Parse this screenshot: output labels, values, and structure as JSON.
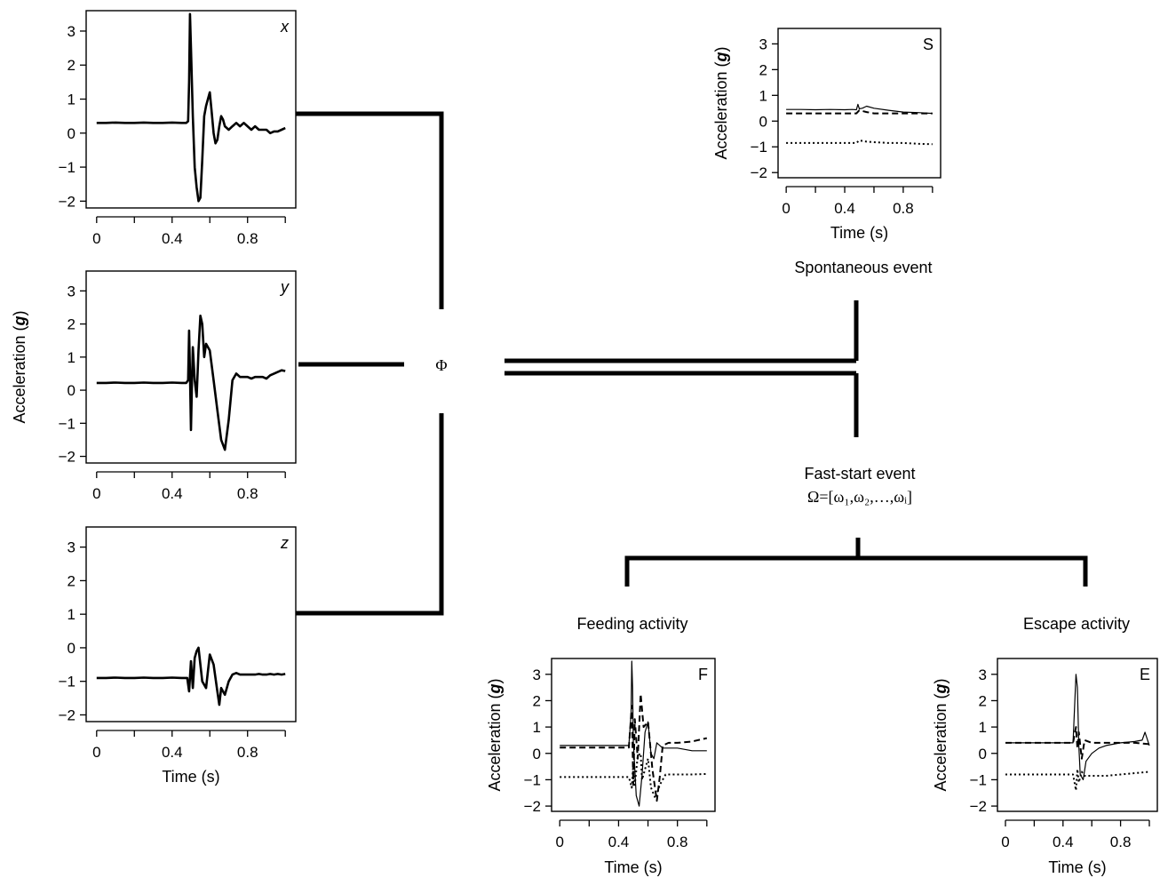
{
  "chart_data": [
    {
      "id": "x",
      "tag": "x",
      "tag_italic": true,
      "type": "line",
      "xlim": [
        0,
        1
      ],
      "ylim": [
        -2.2,
        3.6
      ],
      "xticks": [
        0,
        0.4,
        0.8
      ],
      "xtick_labels": [
        "0",
        "0.4",
        "0.8"
      ],
      "yticks": [
        -2,
        -1,
        0,
        1,
        2,
        3
      ],
      "ytick_labels": [
        "−2",
        "−1",
        "0",
        "1",
        "2",
        "3"
      ],
      "xlabel": "",
      "ylabel": "",
      "series": [
        {
          "style": "solid-thick",
          "x": [
            0,
            0.05,
            0.1,
            0.15,
            0.2,
            0.25,
            0.3,
            0.35,
            0.4,
            0.45,
            0.475,
            0.485,
            0.49,
            0.495,
            0.5,
            0.51,
            0.52,
            0.53,
            0.54,
            0.55,
            0.56,
            0.57,
            0.58,
            0.59,
            0.6,
            0.61,
            0.62,
            0.63,
            0.64,
            0.65,
            0.66,
            0.67,
            0.68,
            0.7,
            0.72,
            0.74,
            0.76,
            0.78,
            0.8,
            0.82,
            0.84,
            0.86,
            0.88,
            0.9,
            0.92,
            0.94,
            0.96,
            0.98,
            1.0
          ],
          "y": [
            0.3,
            0.3,
            0.31,
            0.3,
            0.3,
            0.31,
            0.3,
            0.3,
            0.31,
            0.3,
            0.3,
            0.35,
            1.5,
            3.5,
            2.5,
            0.5,
            -1.0,
            -1.6,
            -2.0,
            -1.9,
            -0.8,
            0.5,
            0.8,
            1.0,
            1.2,
            0.6,
            0.0,
            -0.3,
            -0.2,
            0.2,
            0.5,
            0.4,
            0.2,
            0.1,
            0.2,
            0.3,
            0.2,
            0.3,
            0.2,
            0.1,
            0.2,
            0.1,
            0.1,
            0.1,
            0.0,
            0.05,
            0.05,
            0.1,
            0.15
          ]
        }
      ]
    },
    {
      "id": "y",
      "tag": "y",
      "tag_italic": true,
      "type": "line",
      "xlim": [
        0,
        1
      ],
      "ylim": [
        -2.2,
        3.6
      ],
      "xticks": [
        0,
        0.4,
        0.8
      ],
      "xtick_labels": [
        "0",
        "0.4",
        "0.8"
      ],
      "yticks": [
        -2,
        -1,
        0,
        1,
        2,
        3
      ],
      "ytick_labels": [
        "−2",
        "−1",
        "0",
        "1",
        "2",
        "3"
      ],
      "xlabel": "",
      "ylabel": "Acceleration (g)",
      "series": [
        {
          "style": "solid-thick",
          "x": [
            0,
            0.05,
            0.1,
            0.15,
            0.2,
            0.25,
            0.3,
            0.35,
            0.4,
            0.45,
            0.475,
            0.485,
            0.49,
            0.495,
            0.5,
            0.505,
            0.51,
            0.52,
            0.53,
            0.54,
            0.55,
            0.56,
            0.57,
            0.58,
            0.6,
            0.62,
            0.64,
            0.66,
            0.68,
            0.7,
            0.72,
            0.74,
            0.76,
            0.78,
            0.8,
            0.82,
            0.84,
            0.86,
            0.88,
            0.9,
            0.92,
            0.94,
            0.96,
            0.98,
            1.0
          ],
          "y": [
            0.22,
            0.22,
            0.23,
            0.22,
            0.22,
            0.23,
            0.22,
            0.22,
            0.23,
            0.22,
            0.22,
            0.3,
            1.8,
            0.5,
            -1.2,
            0.2,
            1.3,
            0.3,
            -0.2,
            1.2,
            2.25,
            2.0,
            1.0,
            1.4,
            1.2,
            0.3,
            -0.6,
            -1.5,
            -1.8,
            -0.9,
            0.3,
            0.5,
            0.4,
            0.4,
            0.4,
            0.35,
            0.4,
            0.4,
            0.4,
            0.35,
            0.45,
            0.5,
            0.55,
            0.6,
            0.58
          ]
        }
      ]
    },
    {
      "id": "z",
      "tag": "z",
      "tag_italic": true,
      "type": "line",
      "xlim": [
        0,
        1
      ],
      "ylim": [
        -2.2,
        3.6
      ],
      "xticks": [
        0,
        0.4,
        0.8
      ],
      "xtick_labels": [
        "0",
        "0.4",
        "0.8"
      ],
      "yticks": [
        -2,
        -1,
        0,
        1,
        2,
        3
      ],
      "ytick_labels": [
        "−2",
        "−1",
        "0",
        "1",
        "2",
        "3"
      ],
      "xlabel": "Time (s)",
      "ylabel": "",
      "series": [
        {
          "style": "solid-thick",
          "x": [
            0,
            0.05,
            0.1,
            0.15,
            0.2,
            0.25,
            0.3,
            0.35,
            0.4,
            0.45,
            0.47,
            0.48,
            0.49,
            0.5,
            0.51,
            0.52,
            0.53,
            0.54,
            0.55,
            0.56,
            0.58,
            0.6,
            0.62,
            0.64,
            0.65,
            0.66,
            0.68,
            0.7,
            0.72,
            0.74,
            0.76,
            0.78,
            0.8,
            0.82,
            0.84,
            0.86,
            0.88,
            0.9,
            0.92,
            0.94,
            0.96,
            0.98,
            1.0
          ],
          "y": [
            -0.9,
            -0.9,
            -0.89,
            -0.9,
            -0.9,
            -0.89,
            -0.9,
            -0.9,
            -0.89,
            -0.9,
            -0.9,
            -0.9,
            -1.3,
            -0.4,
            -1.2,
            -0.3,
            -0.1,
            0.0,
            -0.5,
            -1.0,
            -1.2,
            -0.2,
            -0.5,
            -1.3,
            -1.7,
            -1.2,
            -1.4,
            -1.0,
            -0.8,
            -0.75,
            -0.8,
            -0.8,
            -0.8,
            -0.8,
            -0.8,
            -0.78,
            -0.8,
            -0.8,
            -0.78,
            -0.8,
            -0.78,
            -0.8,
            -0.78
          ]
        }
      ]
    },
    {
      "id": "S",
      "tag": "S",
      "tag_italic": false,
      "type": "line",
      "xlim": [
        0,
        1
      ],
      "ylim": [
        -2.2,
        3.6
      ],
      "xticks": [
        0,
        0.4,
        0.8
      ],
      "xtick_labels": [
        "0",
        "0.4",
        "0.8"
      ],
      "yticks": [
        -2,
        -1,
        0,
        1,
        2,
        3
      ],
      "ytick_labels": [
        "−2",
        "−1",
        "0",
        "1",
        "2",
        "3"
      ],
      "xlabel": "Time (s)",
      "ylabel": "Acceleration (g)",
      "series": [
        {
          "style": "solid-thin",
          "x": [
            0,
            0.1,
            0.2,
            0.3,
            0.4,
            0.45,
            0.48,
            0.49,
            0.5,
            0.52,
            0.55,
            0.6,
            0.7,
            0.8,
            0.9,
            1.0
          ],
          "y": [
            0.45,
            0.45,
            0.44,
            0.45,
            0.44,
            0.45,
            0.44,
            0.65,
            0.48,
            0.5,
            0.58,
            0.5,
            0.42,
            0.35,
            0.33,
            0.3
          ]
        },
        {
          "style": "dashed",
          "x": [
            0,
            0.1,
            0.2,
            0.3,
            0.4,
            0.48,
            0.5,
            0.55,
            0.6,
            0.7,
            0.8,
            0.9,
            1.0
          ],
          "y": [
            0.3,
            0.3,
            0.3,
            0.3,
            0.3,
            0.3,
            0.42,
            0.35,
            0.3,
            0.3,
            0.3,
            0.3,
            0.3
          ]
        },
        {
          "style": "dotted",
          "x": [
            0,
            0.1,
            0.2,
            0.3,
            0.4,
            0.45,
            0.48,
            0.5,
            0.55,
            0.6,
            0.7,
            0.8,
            0.9,
            1.0
          ],
          "y": [
            -0.85,
            -0.85,
            -0.85,
            -0.85,
            -0.85,
            -0.85,
            -0.85,
            -0.75,
            -0.8,
            -0.82,
            -0.85,
            -0.85,
            -0.88,
            -0.9
          ]
        }
      ]
    },
    {
      "id": "F",
      "tag": "F",
      "tag_italic": false,
      "type": "line",
      "xlim": [
        0,
        1
      ],
      "ylim": [
        -2.2,
        3.6
      ],
      "xticks": [
        0,
        0.4,
        0.8
      ],
      "xtick_labels": [
        "0",
        "0.4",
        "0.8"
      ],
      "yticks": [
        -2,
        -1,
        0,
        1,
        2,
        3
      ],
      "ytick_labels": [
        "−2",
        "−1",
        "0",
        "1",
        "2",
        "3"
      ],
      "xlabel": "Time (s)",
      "ylabel": "Acceleration (g)",
      "series": [
        {
          "style": "solid-thin",
          "x": [
            0,
            0.1,
            0.2,
            0.3,
            0.4,
            0.47,
            0.485,
            0.49,
            0.495,
            0.5,
            0.52,
            0.54,
            0.56,
            0.58,
            0.6,
            0.62,
            0.64,
            0.66,
            0.7,
            0.8,
            0.9,
            1.0
          ],
          "y": [
            0.3,
            0.3,
            0.3,
            0.3,
            0.3,
            0.3,
            1.5,
            3.5,
            2.5,
            0.5,
            -1.6,
            -2.0,
            -0.8,
            0.8,
            1.2,
            0.0,
            -0.2,
            0.4,
            0.2,
            0.2,
            0.1,
            0.1
          ]
        },
        {
          "style": "dashed",
          "x": [
            0,
            0.1,
            0.2,
            0.3,
            0.4,
            0.47,
            0.49,
            0.5,
            0.51,
            0.53,
            0.55,
            0.57,
            0.6,
            0.63,
            0.66,
            0.68,
            0.7,
            0.74,
            0.8,
            0.9,
            1.0
          ],
          "y": [
            0.22,
            0.22,
            0.22,
            0.22,
            0.22,
            0.22,
            1.8,
            -1.2,
            1.3,
            -0.2,
            2.25,
            1.0,
            1.2,
            -0.6,
            -1.8,
            -0.9,
            0.3,
            0.4,
            0.4,
            0.45,
            0.58
          ]
        },
        {
          "style": "dotted",
          "x": [
            0,
            0.1,
            0.2,
            0.3,
            0.4,
            0.47,
            0.49,
            0.5,
            0.51,
            0.53,
            0.55,
            0.56,
            0.6,
            0.62,
            0.65,
            0.68,
            0.72,
            0.8,
            0.9,
            1.0
          ],
          "y": [
            -0.9,
            -0.9,
            -0.9,
            -0.9,
            -0.9,
            -0.9,
            -1.3,
            -0.4,
            -1.2,
            -0.1,
            0.0,
            -1.0,
            -0.2,
            -1.3,
            -1.7,
            -1.2,
            -0.8,
            -0.8,
            -0.8,
            -0.78
          ]
        }
      ]
    },
    {
      "id": "E",
      "tag": "E",
      "tag_italic": false,
      "type": "line",
      "xlim": [
        0,
        1
      ],
      "ylim": [
        -2.2,
        3.6
      ],
      "xticks": [
        0,
        0.4,
        0.8
      ],
      "xtick_labels": [
        "0",
        "0.4",
        "0.8"
      ],
      "yticks": [
        -2,
        -1,
        0,
        1,
        2,
        3
      ],
      "ytick_labels": [
        "−2",
        "−1",
        "0",
        "1",
        "2",
        "3"
      ],
      "xlabel": "Time (s)",
      "ylabel": "Acceleration (g)",
      "series": [
        {
          "style": "solid-thin",
          "x": [
            0,
            0.1,
            0.2,
            0.3,
            0.4,
            0.47,
            0.49,
            0.5,
            0.51,
            0.52,
            0.54,
            0.56,
            0.6,
            0.65,
            0.7,
            0.8,
            0.9,
            0.95,
            0.97,
            1.0
          ],
          "y": [
            0.4,
            0.4,
            0.4,
            0.4,
            0.4,
            0.4,
            3.0,
            2.5,
            0.3,
            -0.8,
            -1.0,
            -0.3,
            0.0,
            0.2,
            0.3,
            0.4,
            0.45,
            0.5,
            0.8,
            0.3
          ]
        },
        {
          "style": "dashed",
          "x": [
            0,
            0.1,
            0.2,
            0.3,
            0.4,
            0.47,
            0.49,
            0.5,
            0.51,
            0.53,
            0.55,
            0.6,
            0.7,
            0.8,
            0.9,
            1.0
          ],
          "y": [
            0.4,
            0.4,
            0.4,
            0.4,
            0.4,
            0.4,
            1.0,
            0.2,
            0.8,
            -0.2,
            0.5,
            0.4,
            0.4,
            0.4,
            0.4,
            0.35
          ]
        },
        {
          "style": "dotted",
          "x": [
            0,
            0.1,
            0.2,
            0.3,
            0.4,
            0.47,
            0.49,
            0.5,
            0.51,
            0.53,
            0.55,
            0.6,
            0.7,
            0.8,
            0.9,
            1.0
          ],
          "y": [
            -0.8,
            -0.8,
            -0.8,
            -0.8,
            -0.8,
            -0.8,
            -1.4,
            -0.6,
            -1.1,
            -0.7,
            -0.85,
            -0.85,
            -0.85,
            -0.8,
            -0.75,
            -0.7
          ]
        }
      ]
    }
  ],
  "diagram": {
    "phi_label": "Φ",
    "spontaneous_label": "Spontaneous event",
    "fast_start_label": "Fast-start event",
    "omega_label": "Ω=[ω₁,ω₂,…,ωᵢ]",
    "feeding_label": "Feeding activity",
    "escape_label": "Escape activity"
  }
}
